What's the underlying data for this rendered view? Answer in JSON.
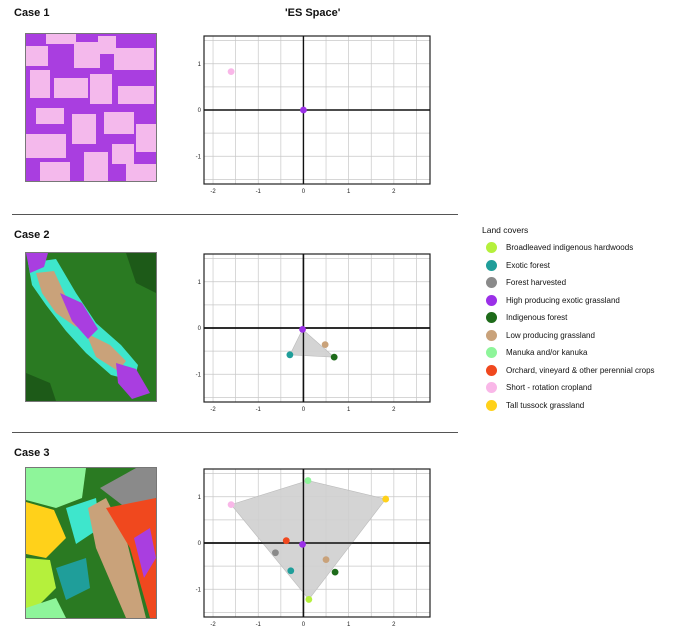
{
  "title": "'ES Space'",
  "cases": [
    {
      "label": "Case 1",
      "map": "map-case-1"
    },
    {
      "label": "Case 2",
      "map": "map-case-2"
    },
    {
      "label": "Case 3",
      "map": "map-case-3"
    }
  ],
  "legend": {
    "title": "Land covers",
    "items": [
      {
        "label": "Broadleaved indigenous hardwoods",
        "color": "#b5f03c"
      },
      {
        "label": "Exotic forest",
        "color": "#1f9e9a"
      },
      {
        "label": "Forest harvested",
        "color": "#8a8a8a"
      },
      {
        "label": "High producing exotic grassland",
        "color": "#9b30e8"
      },
      {
        "label": "Indigenous forest",
        "color": "#1e6b1a"
      },
      {
        "label": "Low producing grassland",
        "color": "#c9a27a"
      },
      {
        "label": "Manuka and/or kanuka",
        "color": "#8ef59a"
      },
      {
        "label": "Orchard, vineyard & other perennial crops",
        "color": "#f0481e"
      },
      {
        "label": "Short - rotation cropland",
        "color": "#f9b7e8"
      },
      {
        "label": "Tall tussock grassland",
        "color": "#ffd11a"
      }
    ]
  },
  "chart_data": [
    {
      "type": "scatter",
      "title": "'ES Space'",
      "xlim": [
        -2.2,
        2.8
      ],
      "ylim": [
        -1.6,
        1.6
      ],
      "xticks": [
        -2,
        -1,
        0,
        1,
        2
      ],
      "yticks": [
        1,
        0,
        -1
      ],
      "grid": true,
      "points": [
        {
          "name": "Short - rotation cropland",
          "x": -1.6,
          "y": 0.83
        },
        {
          "name": "High producing exotic grassland",
          "x": 0.0,
          "y": 0.0
        }
      ],
      "hull": []
    },
    {
      "type": "scatter",
      "xlim": [
        -2.2,
        2.8
      ],
      "ylim": [
        -1.6,
        1.6
      ],
      "xticks": [
        -2,
        -1,
        0,
        1,
        2
      ],
      "yticks": [
        1,
        0,
        -1
      ],
      "grid": true,
      "points": [
        {
          "name": "High producing exotic grassland",
          "x": -0.02,
          "y": -0.03
        },
        {
          "name": "Exotic forest",
          "x": -0.3,
          "y": -0.58
        },
        {
          "name": "Low producing grassland",
          "x": 0.48,
          "y": -0.36
        },
        {
          "name": "Indigenous forest",
          "x": 0.68,
          "y": -0.63
        }
      ],
      "hull": [
        [
          -0.02,
          -0.03
        ],
        [
          0.68,
          -0.63
        ],
        [
          -0.3,
          -0.58
        ]
      ]
    },
    {
      "type": "scatter",
      "xlim": [
        -2.2,
        2.8
      ],
      "ylim": [
        -1.6,
        1.6
      ],
      "xticks": [
        -2,
        -1,
        0,
        1,
        2
      ],
      "yticks": [
        1,
        0,
        -1
      ],
      "grid": true,
      "points": [
        {
          "name": "Manuka and/or kanuka",
          "x": 0.1,
          "y": 1.35
        },
        {
          "name": "Tall tussock grassland",
          "x": 1.82,
          "y": 0.95
        },
        {
          "name": "Short - rotation cropland",
          "x": -1.6,
          "y": 0.83
        },
        {
          "name": "Orchard, vineyard & other perennial crops",
          "x": -0.38,
          "y": 0.05
        },
        {
          "name": "High producing exotic grassland",
          "x": -0.02,
          "y": -0.03
        },
        {
          "name": "Forest harvested",
          "x": -0.62,
          "y": -0.21
        },
        {
          "name": "Low producing grassland",
          "x": 0.5,
          "y": -0.36
        },
        {
          "name": "Exotic forest",
          "x": -0.28,
          "y": -0.6
        },
        {
          "name": "Indigenous forest",
          "x": 0.7,
          "y": -0.63
        },
        {
          "name": "Broadleaved indigenous hardwoods",
          "x": 0.12,
          "y": -1.22
        }
      ],
      "hull": [
        [
          0.1,
          1.35
        ],
        [
          1.82,
          0.95
        ],
        [
          0.12,
          -1.22
        ],
        [
          -1.6,
          0.83
        ]
      ]
    }
  ]
}
